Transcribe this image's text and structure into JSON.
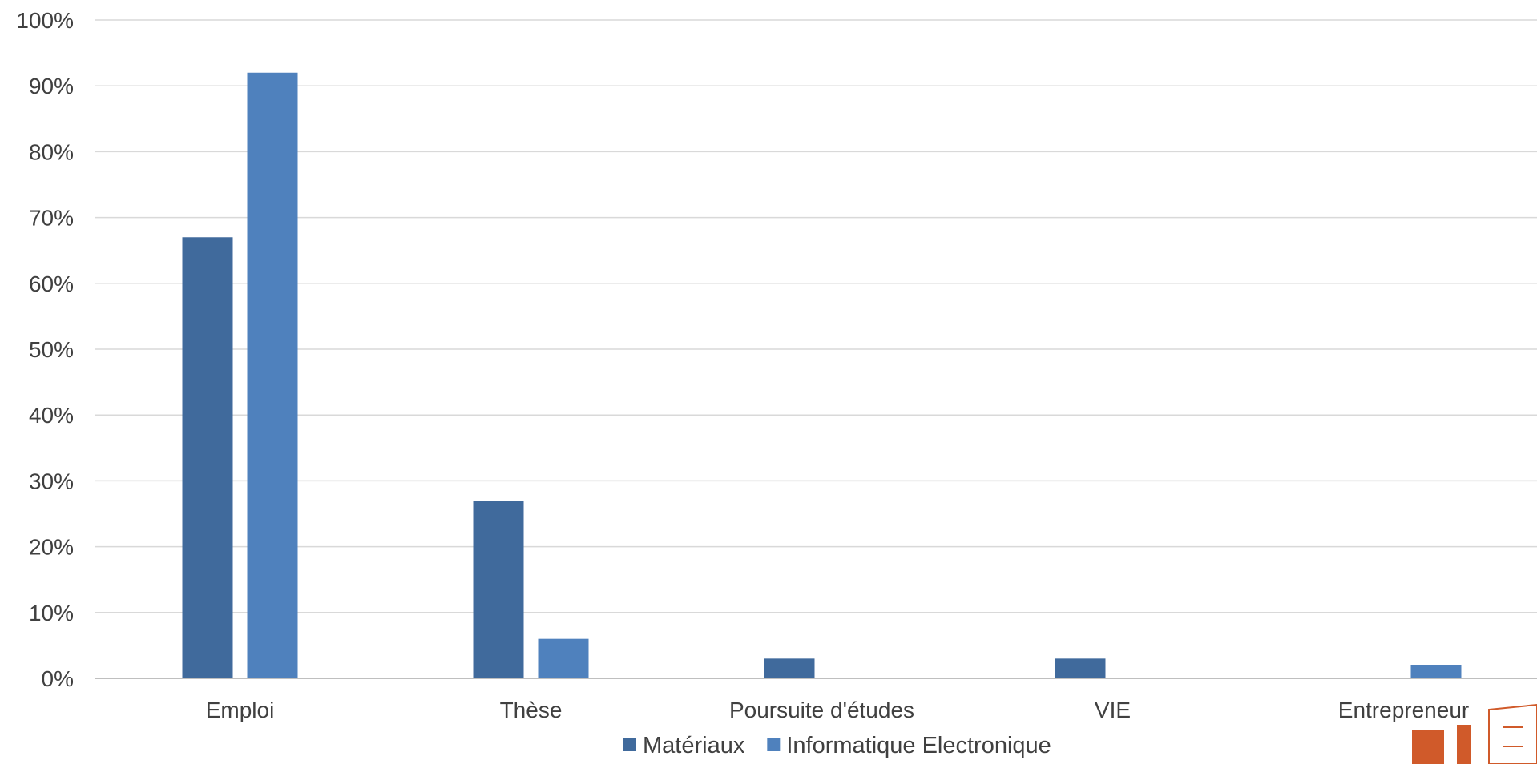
{
  "chart_data": {
    "type": "bar",
    "categories": [
      "Emploi",
      "Thèse",
      "Poursuite d'études",
      "VIE",
      "Entrepreneur"
    ],
    "series": [
      {
        "name": "Matériaux",
        "values": [
          67,
          27,
          3,
          3,
          0
        ]
      },
      {
        "name": "Informatique Electronique",
        "values": [
          92,
          6,
          0,
          0,
          2
        ]
      }
    ],
    "ylim": [
      0,
      100
    ],
    "yticks": [
      0,
      10,
      20,
      30,
      40,
      50,
      60,
      70,
      80,
      90,
      100
    ],
    "ytick_suffix": "%",
    "grid": true,
    "legend_position": "bottom-center"
  },
  "colors": {
    "series": [
      "#406a9c",
      "#4f81bd"
    ],
    "logo": "#d05a2a"
  },
  "logo": {
    "icon": "university-logo"
  }
}
